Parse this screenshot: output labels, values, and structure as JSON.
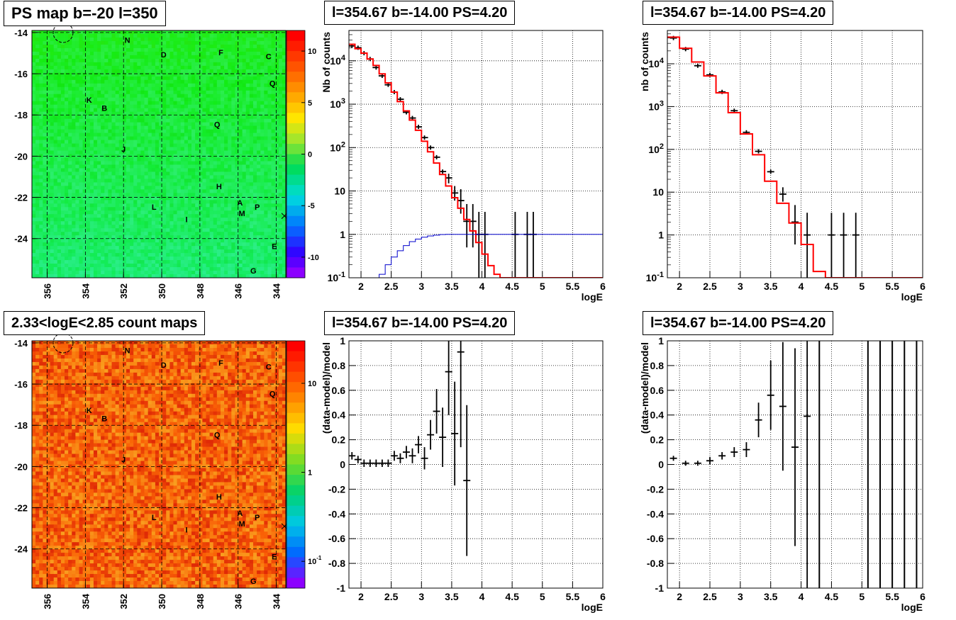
{
  "colors": {
    "data": "#000000",
    "model": "#ff0000",
    "aux": "#0000cc",
    "grid": "#000000"
  },
  "panels": [
    {
      "title": "PS map b=-20 l=350"
    },
    {
      "title": "l=354.67 b=-14.00 PS=4.20"
    },
    {
      "title": "l=354.67 b=-14.00 PS=4.20"
    },
    {
      "title": "2.33<logE<2.85 count maps"
    },
    {
      "title": "l=354.67 b=-14.00 PS=4.20"
    },
    {
      "title": "l=354.67 b=-14.00 PS=4.20"
    }
  ],
  "source_labels": [
    {
      "name": "N",
      "l": 351.8,
      "b": -14.5
    },
    {
      "name": "D",
      "l": 349.9,
      "b": -15.2
    },
    {
      "name": "F",
      "l": 346.9,
      "b": -15.1
    },
    {
      "name": "C",
      "l": 344.4,
      "b": -15.3
    },
    {
      "name": "Q",
      "l": 344.2,
      "b": -16.6
    },
    {
      "name": "K",
      "l": 353.8,
      "b": -17.4
    },
    {
      "name": "B",
      "l": 353.0,
      "b": -17.8
    },
    {
      "name": "Q",
      "l": 347.1,
      "b": -18.6
    },
    {
      "name": "J",
      "l": 352.0,
      "b": -19.8
    },
    {
      "name": "H",
      "l": 347.0,
      "b": -21.6
    },
    {
      "name": "A",
      "l": 345.9,
      "b": -22.4
    },
    {
      "name": "P",
      "l": 345.0,
      "b": -22.6
    },
    {
      "name": "M",
      "l": 345.8,
      "b": -22.9
    },
    {
      "name": "L",
      "l": 350.4,
      "b": -22.6
    },
    {
      "name": "I",
      "l": 348.7,
      "b": -23.2
    },
    {
      "name": "E",
      "l": 344.1,
      "b": -24.5
    },
    {
      "name": "G",
      "l": 345.2,
      "b": -25.7
    }
  ],
  "chart_data": [
    {
      "type": "heatmap",
      "title": "PS map b=-20 l=350",
      "x_ticks": [
        "356",
        "354",
        "352",
        "350",
        "348",
        "346",
        "344"
      ],
      "y_ticks": [
        "-14",
        "-16",
        "-18",
        "-20",
        "-22",
        "-24"
      ],
      "xlim": [
        356.8,
        343.5
      ],
      "ylim": [
        -25.9,
        -13.9
      ],
      "colorbar": {
        "scale": "linear",
        "ticks": [
          "10",
          "5",
          "0",
          "-5",
          "-10"
        ],
        "range": [
          -12,
          12
        ]
      },
      "grid": true
    },
    {
      "type": "line",
      "title": "l=354.67 b=-14.00 PS=4.20",
      "xlabel": "logE",
      "ylabel": "Nb of counts",
      "yscale": "log",
      "xlim": [
        1.8,
        6
      ],
      "ylim": [
        0.1,
        50000
      ],
      "x_ticks": [
        "2",
        "2.5",
        "3",
        "3.5",
        "4",
        "4.5",
        "5",
        "5.5",
        "6"
      ],
      "y_ticks": [
        "10^-1",
        "1",
        "10",
        "10^2",
        "10^3",
        "10^4"
      ],
      "grid": true,
      "series": [
        {
          "kind": "points",
          "x": [
            1.85,
            1.95,
            2.05,
            2.15,
            2.25,
            2.35,
            2.45,
            2.55,
            2.65,
            2.75,
            2.85,
            2.95,
            3.05,
            3.15,
            3.25,
            3.35,
            3.45,
            3.55,
            3.65,
            3.75,
            3.85,
            3.95,
            4.05,
            4.55,
            4.75,
            4.85
          ],
          "y": [
            22000,
            20000,
            15000,
            11000,
            7000,
            4500,
            2800,
            1900,
            1300,
            650,
            480,
            300,
            170,
            100,
            60,
            28,
            20,
            9,
            6,
            2,
            2,
            1,
            1,
            1,
            1,
            1
          ],
          "err_lo": [
            0,
            0,
            0,
            0,
            0,
            0,
            0,
            0,
            0,
            0,
            0,
            0,
            0,
            0,
            0,
            0,
            5,
            3,
            3,
            1.5,
            1.5,
            0.9,
            0.9,
            0.9,
            0.9,
            0.9
          ],
          "err_hi": [
            0,
            0,
            0,
            0,
            0,
            0,
            0,
            0,
            0,
            0,
            0,
            0,
            0,
            0,
            0,
            0,
            5,
            4,
            5,
            3,
            3,
            2.3,
            2.3,
            2.3,
            2.3,
            2.3
          ]
        },
        {
          "kind": "step",
          "edges": [
            1.8,
            1.9,
            2.0,
            2.1,
            2.2,
            2.3,
            2.4,
            2.5,
            2.6,
            2.7,
            2.8,
            2.9,
            3.0,
            3.1,
            3.2,
            3.3,
            3.4,
            3.5,
            3.6,
            3.7,
            3.8,
            3.9,
            4.0,
            4.1,
            4.2,
            4.3,
            4.4,
            4.5,
            6.0
          ],
          "values": [
            24000,
            19000,
            15000,
            11000,
            7800,
            5000,
            3100,
            1900,
            1150,
            700,
            430,
            250,
            140,
            80,
            44,
            24,
            13,
            7,
            4,
            2.2,
            1.2,
            0.65,
            0.35,
            0.19,
            0.12,
            0.1,
            0.1,
            0.1
          ]
        },
        {
          "kind": "step_aux",
          "edges": [
            1.8,
            2.3,
            2.4,
            2.5,
            2.6,
            2.7,
            2.8,
            2.9,
            3.0,
            3.1,
            3.2,
            3.3,
            3.4,
            3.5,
            6.0
          ],
          "values": [
            0.1,
            0.12,
            0.2,
            0.3,
            0.42,
            0.55,
            0.68,
            0.78,
            0.86,
            0.92,
            0.96,
            0.99,
            1.0,
            1.0
          ]
        }
      ]
    },
    {
      "type": "line",
      "title": "l=354.67 b=-14.00 PS=4.20",
      "xlabel": "logE",
      "ylabel": "nb of counts",
      "yscale": "log",
      "xlim": [
        1.8,
        6
      ],
      "ylim": [
        0.1,
        60000
      ],
      "x_ticks": [
        "2",
        "2.5",
        "3",
        "3.5",
        "4",
        "4.5",
        "5",
        "5.5",
        "6"
      ],
      "y_ticks": [
        "10^-1",
        "1",
        "10",
        "10^2",
        "10^3",
        "10^4"
      ],
      "grid": true,
      "series": [
        {
          "kind": "points",
          "x": [
            1.9,
            2.1,
            2.3,
            2.5,
            2.7,
            2.9,
            3.1,
            3.3,
            3.5,
            3.7,
            3.9,
            4.1,
            4.5,
            4.7,
            4.9
          ],
          "y": [
            40000,
            22000,
            9000,
            5500,
            2200,
            800,
            250,
            90,
            30,
            9,
            2,
            1,
            1,
            1,
            1
          ],
          "err_lo": [
            0,
            0,
            0,
            0,
            0,
            0,
            0,
            0,
            0,
            3,
            1.4,
            0.9,
            0.9,
            0.9,
            0.9
          ],
          "err_hi": [
            0,
            0,
            0,
            0,
            0,
            0,
            0,
            0,
            0,
            4,
            3,
            2.3,
            2.3,
            2.3,
            2.3
          ]
        },
        {
          "kind": "step",
          "edges": [
            1.8,
            2.0,
            2.2,
            2.4,
            2.6,
            2.8,
            3.0,
            3.2,
            3.4,
            3.6,
            3.8,
            4.0,
            4.2,
            4.4,
            6.0
          ],
          "values": [
            42000,
            23000,
            11000,
            5200,
            2100,
            720,
            230,
            75,
            18,
            5.5,
            1.9,
            0.6,
            0.14,
            0.1
          ]
        }
      ]
    },
    {
      "type": "heatmap",
      "title": "2.33<logE<2.85 count maps",
      "x_ticks": [
        "356",
        "354",
        "352",
        "350",
        "348",
        "346",
        "344"
      ],
      "y_ticks": [
        "-14",
        "-16",
        "-18",
        "-20",
        "-22",
        "-24"
      ],
      "xlim": [
        356.8,
        343.5
      ],
      "ylim": [
        -25.9,
        -13.9
      ],
      "colorbar": {
        "scale": "log",
        "ticks": [
          "10",
          "1",
          "10^-1"
        ],
        "range": [
          0.05,
          30
        ]
      },
      "grid": true
    },
    {
      "type": "scatter",
      "title": "l=354.67 b=-14.00 PS=4.20",
      "xlabel": "logE",
      "ylabel": "(data-model)/model",
      "xlim": [
        1.8,
        6
      ],
      "ylim": [
        -1,
        1
      ],
      "x_ticks": [
        "2",
        "2.5",
        "3",
        "3.5",
        "4",
        "4.5",
        "5",
        "5.5",
        "6"
      ],
      "y_ticks": [
        "-1",
        "-0.8",
        "-0.6",
        "-0.4",
        "-0.2",
        "0",
        "0.2",
        "0.4",
        "0.6",
        "0.8",
        "1"
      ],
      "grid": true,
      "series": [
        {
          "kind": "points",
          "x": [
            1.85,
            1.95,
            2.05,
            2.15,
            2.25,
            2.35,
            2.45,
            2.55,
            2.65,
            2.75,
            2.85,
            2.95,
            3.05,
            3.15,
            3.25,
            3.35,
            3.45,
            3.55,
            3.65,
            3.75
          ],
          "y": [
            0.07,
            0.04,
            0.01,
            0.01,
            0.01,
            0.01,
            0.01,
            0.07,
            0.05,
            0.1,
            0.07,
            0.16,
            0.05,
            0.24,
            0.43,
            0.22,
            0.75,
            0.25,
            0.91,
            -0.13
          ],
          "err": [
            0.03,
            0.03,
            0.03,
            0.03,
            0.03,
            0.03,
            0.03,
            0.04,
            0.04,
            0.05,
            0.06,
            0.07,
            0.09,
            0.12,
            0.18,
            0.24,
            0.35,
            0.42,
            0.77,
            0.61
          ]
        }
      ]
    },
    {
      "type": "scatter",
      "title": "l=354.67 b=-14.00 PS=4.20",
      "xlabel": "logE",
      "ylabel": "(data-model)/model",
      "xlim": [
        1.8,
        6
      ],
      "ylim": [
        -1,
        1
      ],
      "x_ticks": [
        "2",
        "2.5",
        "3",
        "3.5",
        "4",
        "4.5",
        "5",
        "5.5",
        "6"
      ],
      "y_ticks": [
        "-1",
        "-0.8",
        "-0.6",
        "-0.4",
        "-0.2",
        "0",
        "0.2",
        "0.4",
        "0.6",
        "0.8",
        "1"
      ],
      "grid": true,
      "series": [
        {
          "kind": "points",
          "x": [
            1.9,
            2.1,
            2.3,
            2.5,
            2.7,
            2.9,
            3.1,
            3.3,
            3.5,
            3.7,
            3.9,
            4.1
          ],
          "y": [
            0.05,
            0.01,
            0.01,
            0.03,
            0.07,
            0.1,
            0.12,
            0.36,
            0.56,
            0.47,
            0.14,
            0.39
          ],
          "err": [
            0.02,
            0.02,
            0.02,
            0.03,
            0.03,
            0.04,
            0.06,
            0.14,
            0.28,
            0.52,
            0.8,
            1.5
          ]
        },
        {
          "kind": "vlines",
          "x": [
            4.3,
            5.1,
            5.3,
            5.5,
            5.7,
            5.9
          ]
        }
      ]
    }
  ]
}
